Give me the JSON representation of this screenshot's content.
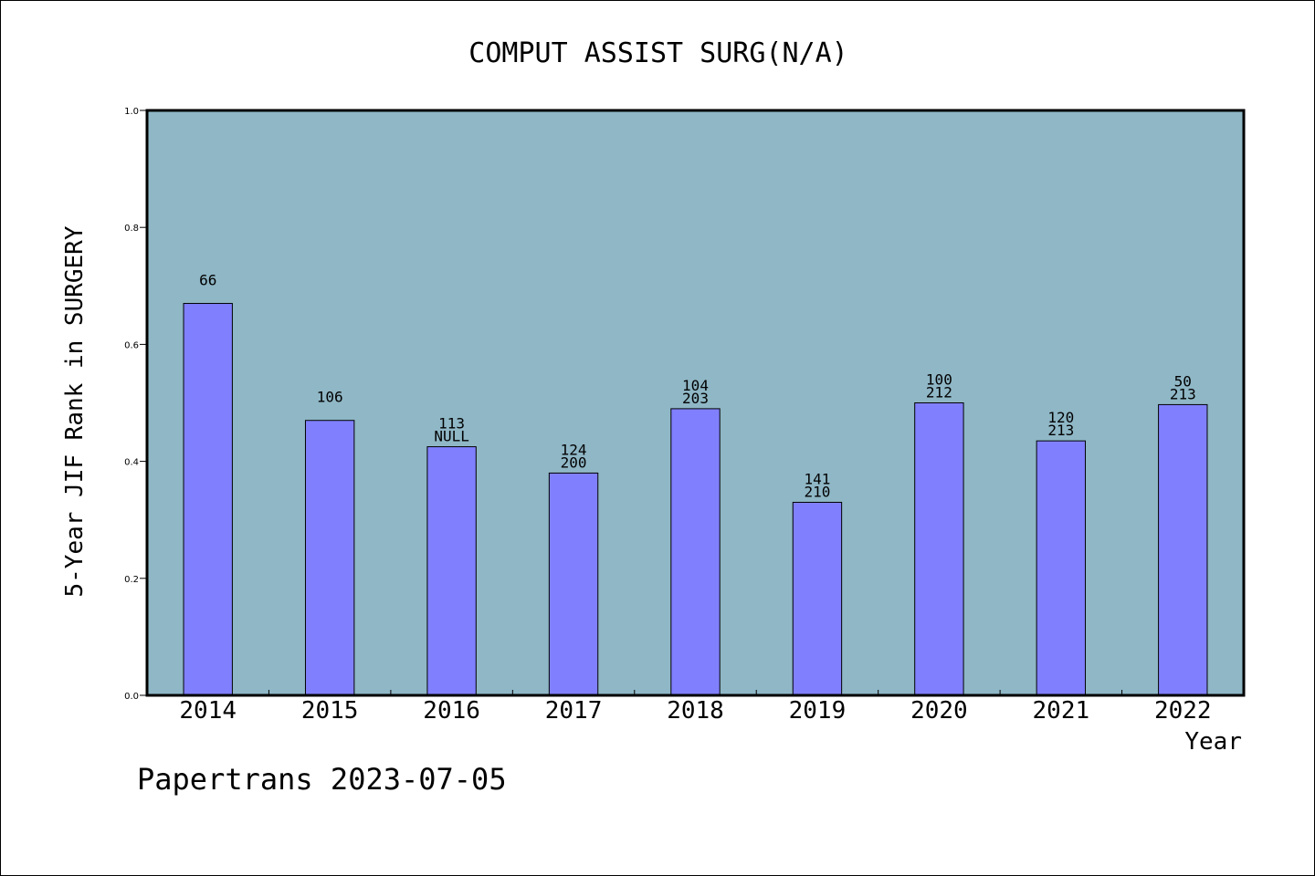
{
  "chart_data": {
    "type": "bar",
    "title": "COMPUT ASSIST SURG(N/A)",
    "xlabel": "Year",
    "ylabel": "5-Year JIF Rank in SURGERY",
    "ylim": [
      0,
      1.0
    ],
    "yticks": [
      "0.0",
      "0.2",
      "0.4",
      "0.6",
      "0.8",
      "1.0"
    ],
    "categories": [
      "2014",
      "2015",
      "2016",
      "2017",
      "2018",
      "2019",
      "2020",
      "2021",
      "2022"
    ],
    "values": [
      0.67,
      0.47,
      0.425,
      0.38,
      0.49,
      0.33,
      0.5,
      0.435,
      0.497
    ],
    "bar_labels": [
      [
        "66"
      ],
      [
        "106"
      ],
      [
        "113",
        "NULL"
      ],
      [
        "124",
        "200"
      ],
      [
        "104",
        "203"
      ],
      [
        "141",
        "210"
      ],
      [
        "100",
        "212"
      ],
      [
        "120",
        "213"
      ],
      [
        "50",
        "213"
      ]
    ],
    "grid": false,
    "colors": {
      "plot_background": "#8fb7c6",
      "bar_fill": "#8080ff",
      "bar_stroke": "#000000"
    }
  },
  "footer": "Papertrans 2023-07-05"
}
